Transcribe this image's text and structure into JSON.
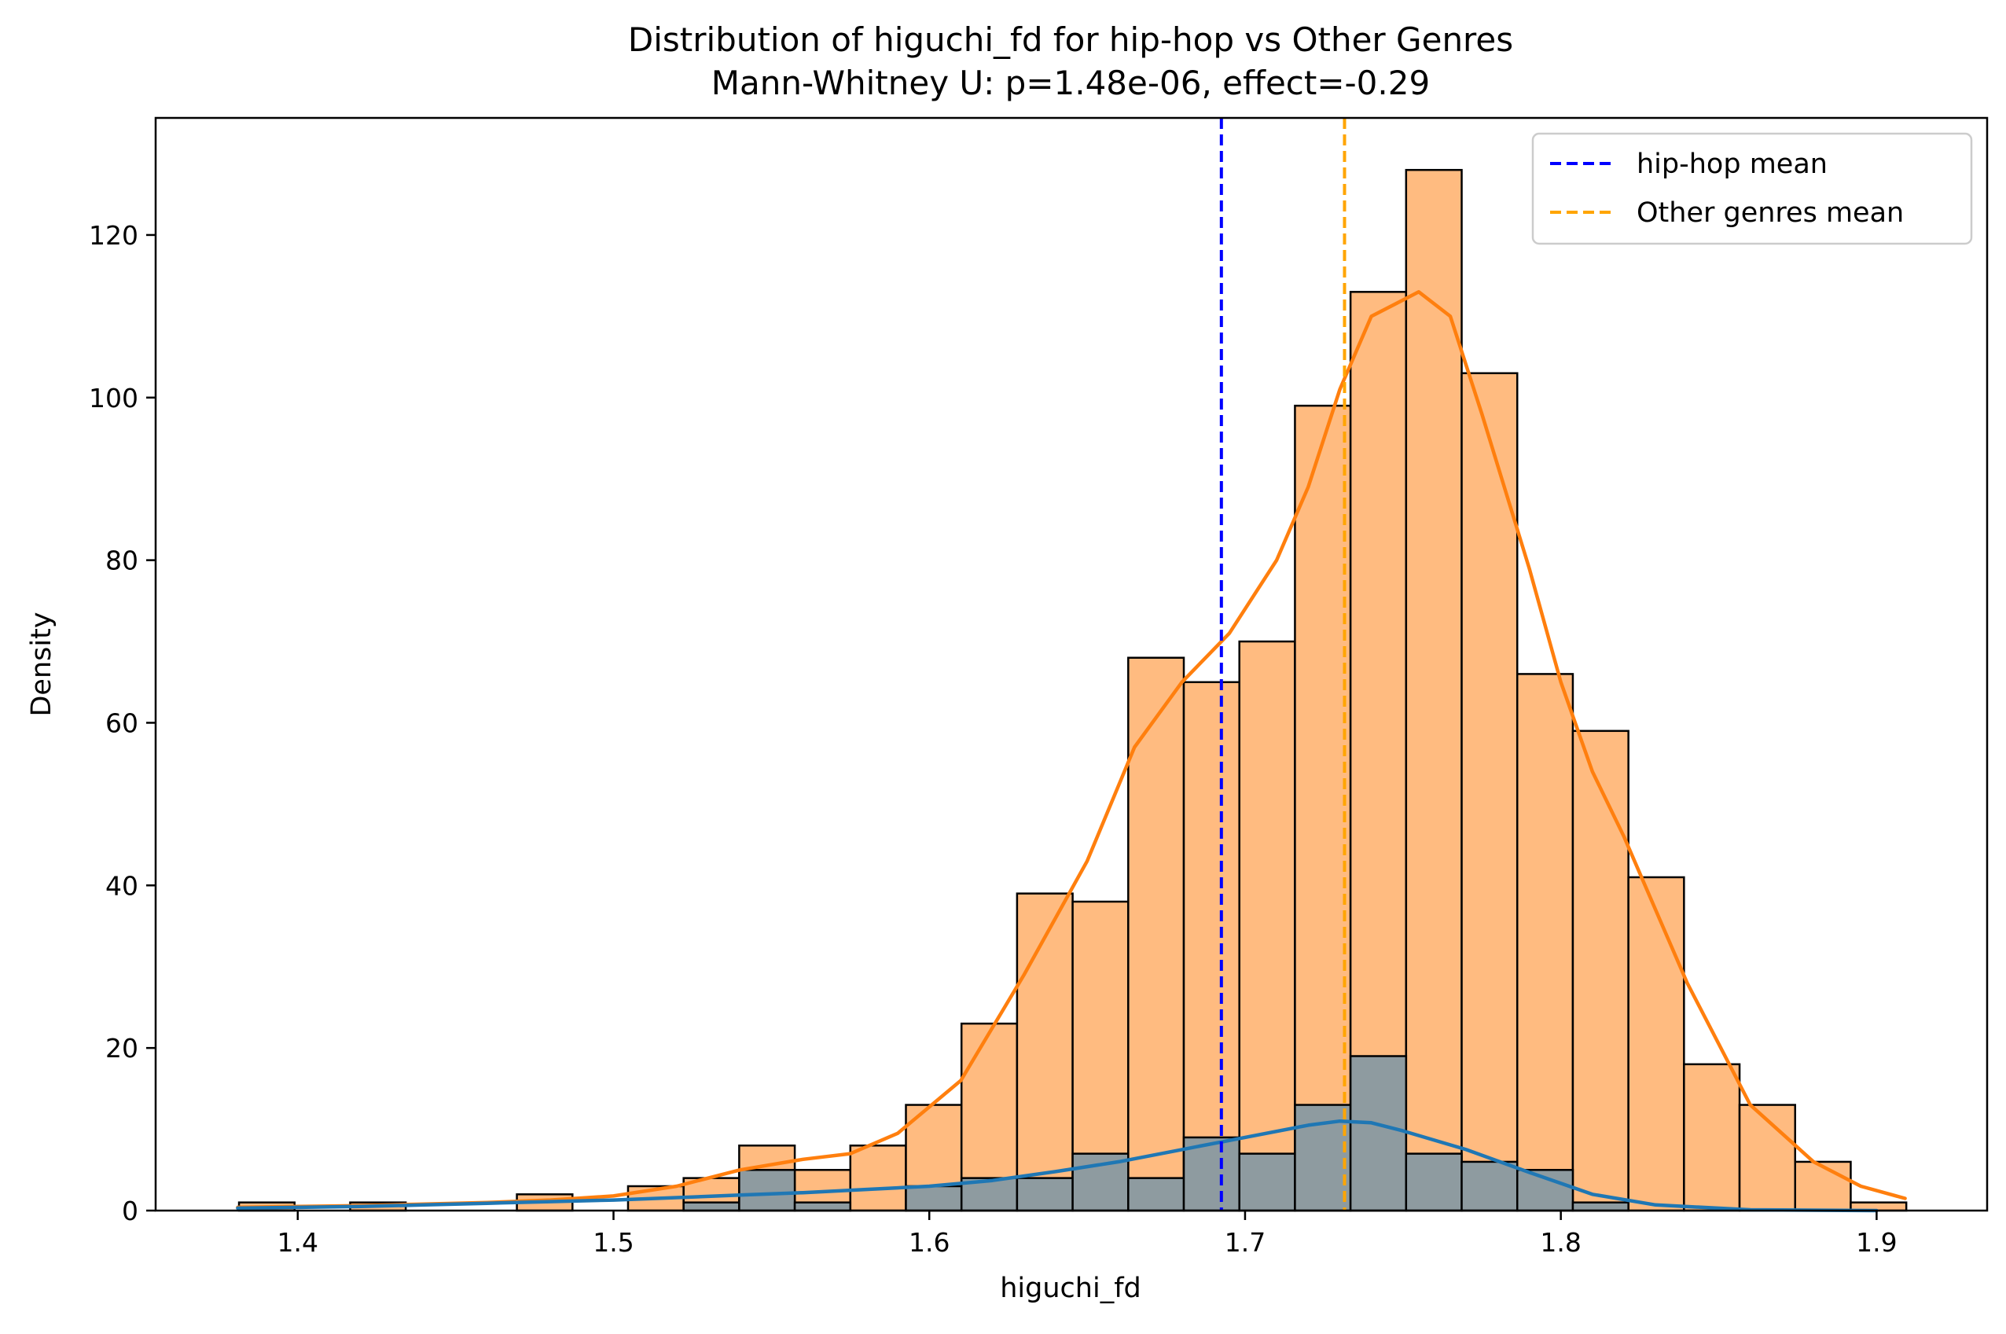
{
  "chart_data": {
    "type": "histogram",
    "title": "Distribution of higuchi_fd for hip-hop vs Other Genres",
    "subtitle": "Mann-Whitney U: p=1.48e-06, effect=-0.29",
    "xlabel": "higuchi_fd",
    "ylabel": "Density",
    "xlim": [
      1.355,
      1.935
    ],
    "ylim": [
      0,
      134.4
    ],
    "xticks": [
      1.4,
      1.5,
      1.6,
      1.7,
      1.8,
      1.9
    ],
    "xtick_labels": [
      "1.4",
      "1.5",
      "1.6",
      "1.7",
      "1.8",
      "1.9"
    ],
    "yticks": [
      0,
      20,
      40,
      60,
      80,
      100,
      120
    ],
    "ytick_labels": [
      "0",
      "20",
      "40",
      "60",
      "80",
      "100",
      "120"
    ],
    "grid": false,
    "legend_position": "top-right",
    "bin_edges": [
      1.3814,
      1.399,
      1.4166,
      1.4342,
      1.4518,
      1.4694,
      1.487,
      1.5046,
      1.5222,
      1.5398,
      1.5574,
      1.575,
      1.5926,
      1.6102,
      1.6278,
      1.6454,
      1.663,
      1.6806,
      1.6982,
      1.7158,
      1.7334,
      1.751,
      1.7686,
      1.7862,
      1.8038,
      1.8214,
      1.839,
      1.8566,
      1.8742,
      1.8918,
      1.9094
    ],
    "series": [
      {
        "role": "other genres",
        "color": "#ffbb80",
        "edge_color": "#000000",
        "counts": [
          1,
          0,
          1,
          0,
          0,
          2,
          0,
          3,
          4,
          8,
          5,
          8,
          13,
          23,
          39,
          38,
          68,
          65,
          70,
          99,
          113,
          128,
          103,
          66,
          59,
          41,
          18,
          13,
          6,
          1
        ],
        "kde": [
          [
            1.381,
            0.4
          ],
          [
            1.4,
            0.5
          ],
          [
            1.42,
            0.6
          ],
          [
            1.44,
            0.8
          ],
          [
            1.46,
            1.0
          ],
          [
            1.48,
            1.3
          ],
          [
            1.5,
            1.8
          ],
          [
            1.52,
            3.0
          ],
          [
            1.54,
            5.0
          ],
          [
            1.56,
            6.3
          ],
          [
            1.575,
            7.0
          ],
          [
            1.59,
            9.5
          ],
          [
            1.61,
            16
          ],
          [
            1.63,
            29
          ],
          [
            1.65,
            43
          ],
          [
            1.665,
            57
          ],
          [
            1.68,
            65
          ],
          [
            1.695,
            71
          ],
          [
            1.71,
            80
          ],
          [
            1.72,
            89
          ],
          [
            1.73,
            101
          ],
          [
            1.74,
            110
          ],
          [
            1.755,
            113
          ],
          [
            1.765,
            110
          ],
          [
            1.775,
            98
          ],
          [
            1.79,
            79
          ],
          [
            1.8,
            65
          ],
          [
            1.81,
            54
          ],
          [
            1.82,
            46
          ],
          [
            1.84,
            28
          ],
          [
            1.86,
            13
          ],
          [
            1.88,
            6
          ],
          [
            1.895,
            3
          ],
          [
            1.909,
            1.5
          ]
        ],
        "kde_color": "#ff7f0e"
      },
      {
        "role": "hip-hop",
        "color": "#8e9ba0",
        "edge_color": "#000000",
        "counts": [
          0,
          0,
          0,
          0,
          0,
          0,
          0,
          0,
          1,
          5,
          1,
          0,
          3,
          4,
          4,
          7,
          4,
          9,
          7,
          13,
          19,
          7,
          6,
          5,
          1,
          0,
          0,
          0,
          0,
          0
        ],
        "kde": [
          [
            1.381,
            0.3
          ],
          [
            1.4,
            0.4
          ],
          [
            1.42,
            0.5
          ],
          [
            1.44,
            0.7
          ],
          [
            1.46,
            0.9
          ],
          [
            1.48,
            1.1
          ],
          [
            1.5,
            1.3
          ],
          [
            1.52,
            1.6
          ],
          [
            1.54,
            1.9
          ],
          [
            1.56,
            2.2
          ],
          [
            1.58,
            2.6
          ],
          [
            1.6,
            3.0
          ],
          [
            1.62,
            3.7
          ],
          [
            1.64,
            4.8
          ],
          [
            1.66,
            6.0
          ],
          [
            1.68,
            7.5
          ],
          [
            1.7,
            9.0
          ],
          [
            1.72,
            10.5
          ],
          [
            1.73,
            11.0
          ],
          [
            1.74,
            10.8
          ],
          [
            1.75,
            9.8
          ],
          [
            1.77,
            7.5
          ],
          [
            1.79,
            4.7
          ],
          [
            1.81,
            2.0
          ],
          [
            1.83,
            0.7
          ],
          [
            1.86,
            0.1
          ],
          [
            1.9,
            0.0
          ]
        ],
        "kde_color": "#1f77b4"
      }
    ],
    "mean_lines": [
      {
        "label": "hip-hop mean",
        "x": 1.6925,
        "color": "#0000ff"
      },
      {
        "label": "Other genres mean",
        "x": 1.7315,
        "color": "#ffa500"
      }
    ],
    "legend": [
      {
        "label": "hip-hop mean",
        "color": "#0000ff"
      },
      {
        "label": "Other genres mean",
        "color": "#ffa500"
      }
    ]
  }
}
